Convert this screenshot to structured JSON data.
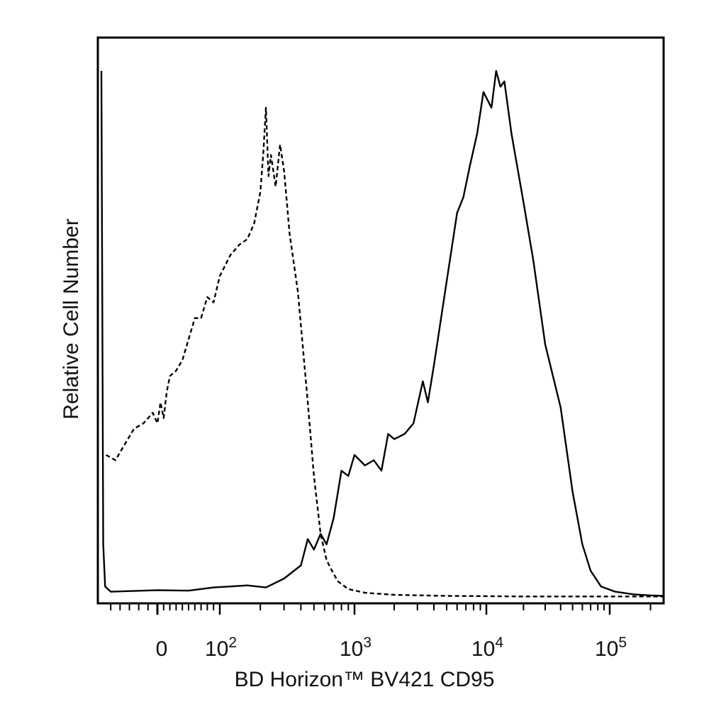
{
  "chart_data": {
    "type": "line",
    "title": "",
    "xlabel": "BD Horizon™ BV421 CD95",
    "ylabel": "Relative Cell Number",
    "x_scale": "biexponential",
    "xlim": [
      -60,
      250000
    ],
    "ylim": [
      0,
      1
    ],
    "grid": false,
    "legend": "none",
    "x_tick_labels": [
      {
        "value": 0,
        "base": "0",
        "exp": ""
      },
      {
        "value": 100,
        "base": "10",
        "exp": "2"
      },
      {
        "value": 1000,
        "base": "10",
        "exp": "3"
      },
      {
        "value": 10000,
        "base": "10",
        "exp": "4"
      },
      {
        "value": 100000,
        "base": "10",
        "exp": "5"
      }
    ],
    "major_ticks": [
      100,
      1000,
      10000,
      100000
    ],
    "minor_ticks": [
      -50,
      -40,
      -30,
      -20,
      -10,
      10,
      20,
      30,
      40,
      50,
      60,
      70,
      80,
      90,
      200,
      300,
      400,
      500,
      600,
      700,
      800,
      900,
      2000,
      3000,
      4000,
      5000,
      6000,
      7000,
      8000,
      9000,
      20000,
      30000,
      40000,
      50000,
      60000,
      70000,
      80000,
      90000,
      200000
    ],
    "series": [
      {
        "style": "dashed",
        "points": [
          [
            -55,
            0.27
          ],
          [
            -45,
            0.26
          ],
          [
            -35,
            0.29
          ],
          [
            -25,
            0.32
          ],
          [
            -15,
            0.33
          ],
          [
            -5,
            0.35
          ],
          [
            0,
            0.33
          ],
          [
            5,
            0.37
          ],
          [
            10,
            0.34
          ],
          [
            15,
            0.39
          ],
          [
            20,
            0.42
          ],
          [
            30,
            0.43
          ],
          [
            40,
            0.45
          ],
          [
            50,
            0.49
          ],
          [
            60,
            0.53
          ],
          [
            70,
            0.53
          ],
          [
            80,
            0.57
          ],
          [
            90,
            0.56
          ],
          [
            100,
            0.61
          ],
          [
            120,
            0.65
          ],
          [
            140,
            0.67
          ],
          [
            160,
            0.68
          ],
          [
            180,
            0.71
          ],
          [
            200,
            0.77
          ],
          [
            210,
            0.84
          ],
          [
            220,
            0.93
          ],
          [
            230,
            0.8
          ],
          [
            240,
            0.84
          ],
          [
            260,
            0.78
          ],
          [
            280,
            0.86
          ],
          [
            300,
            0.81
          ],
          [
            330,
            0.69
          ],
          [
            380,
            0.58
          ],
          [
            450,
            0.37
          ],
          [
            500,
            0.23
          ],
          [
            560,
            0.12
          ],
          [
            620,
            0.07
          ],
          [
            680,
            0.05
          ],
          [
            750,
            0.03
          ],
          [
            900,
            0.015
          ],
          [
            1200,
            0.008
          ],
          [
            2000,
            0.004
          ],
          [
            5000,
            0.002
          ],
          [
            20000,
            0.001
          ],
          [
            100000,
            0.001
          ],
          [
            250000,
            0.001
          ]
        ]
      },
      {
        "style": "solid",
        "points": [
          [
            -60,
            1.0
          ],
          [
            -58,
            0.1
          ],
          [
            -56,
            0.02
          ],
          [
            -50,
            0.01
          ],
          [
            0,
            0.013
          ],
          [
            50,
            0.012
          ],
          [
            90,
            0.018
          ],
          [
            120,
            0.02
          ],
          [
            160,
            0.022
          ],
          [
            220,
            0.018
          ],
          [
            300,
            0.035
          ],
          [
            400,
            0.06
          ],
          [
            450,
            0.11
          ],
          [
            500,
            0.09
          ],
          [
            560,
            0.12
          ],
          [
            620,
            0.1
          ],
          [
            700,
            0.15
          ],
          [
            800,
            0.24
          ],
          [
            900,
            0.23
          ],
          [
            1000,
            0.27
          ],
          [
            1200,
            0.25
          ],
          [
            1400,
            0.26
          ],
          [
            1600,
            0.24
          ],
          [
            1800,
            0.31
          ],
          [
            2000,
            0.3
          ],
          [
            2400,
            0.31
          ],
          [
            2800,
            0.33
          ],
          [
            3300,
            0.41
          ],
          [
            3600,
            0.37
          ],
          [
            4000,
            0.44
          ],
          [
            5000,
            0.6
          ],
          [
            6000,
            0.73
          ],
          [
            6700,
            0.76
          ],
          [
            7500,
            0.82
          ],
          [
            8500,
            0.88
          ],
          [
            9500,
            0.96
          ],
          [
            11000,
            0.93
          ],
          [
            12000,
            1.0
          ],
          [
            13000,
            0.97
          ],
          [
            14000,
            0.98
          ],
          [
            16000,
            0.88
          ],
          [
            20000,
            0.75
          ],
          [
            24000,
            0.64
          ],
          [
            30000,
            0.48
          ],
          [
            40000,
            0.36
          ],
          [
            50000,
            0.2
          ],
          [
            60000,
            0.1
          ],
          [
            70000,
            0.05
          ],
          [
            85000,
            0.02
          ],
          [
            110000,
            0.01
          ],
          [
            150000,
            0.005
          ],
          [
            200000,
            0.003
          ],
          [
            250000,
            0.002
          ]
        ]
      }
    ]
  }
}
